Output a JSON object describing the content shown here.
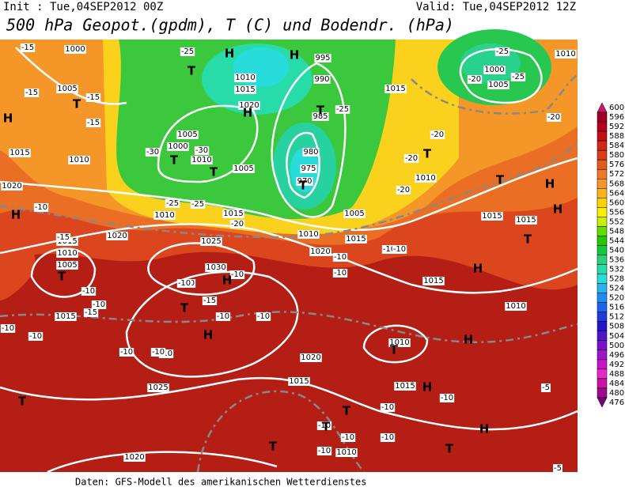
{
  "header": {
    "init": "Init : Tue,04SEP2012 00Z",
    "valid": "Valid: Tue,04SEP2012 12Z",
    "title": "500 hPa Geopot.(gpdm), T (C) und Bodendr. (hPa)"
  },
  "footer": "Daten: GFS-Modell des amerikanischen Wetterdienstes",
  "colorbar": {
    "levels": [
      600,
      596,
      592,
      588,
      584,
      580,
      576,
      572,
      568,
      564,
      560,
      556,
      552,
      548,
      544,
      540,
      536,
      532,
      528,
      524,
      520,
      516,
      512,
      508,
      504,
      500,
      496,
      492,
      488,
      484,
      480,
      476
    ],
    "colors": [
      "#d2146e",
      "#a00028",
      "#b4001e",
      "#c30f0f",
      "#d22814",
      "#dc3c14",
      "#e65a1e",
      "#f07828",
      "#f59628",
      "#fab41e",
      "#ffd200",
      "#fff000",
      "#c8f000",
      "#64dc00",
      "#28c800",
      "#14c83c",
      "#28d278",
      "#28dcaa",
      "#28dcdc",
      "#28b4f0",
      "#1e8cf0",
      "#1e64f0",
      "#1e3cdc",
      "#2814c8",
      "#5014c8",
      "#7814c8",
      "#a014c8",
      "#c814c8",
      "#e628c8",
      "#c814a0",
      "#a00a8c",
      "#780078"
    ]
  },
  "map": {
    "isobar_labels": [
      "1000",
      "1005",
      "1010",
      "1015",
      "1020",
      "1010",
      "1015",
      "1020",
      "1025",
      "1015",
      "1010",
      "1005",
      "1015",
      "1030",
      "1020",
      "1025",
      "1015",
      "1020",
      "1010",
      "1015",
      "1010",
      "1015",
      "1010",
      "1015",
      "1015",
      "1010",
      "1005",
      "1015",
      "1020",
      "1010",
      "995",
      "990",
      "985",
      "980",
      "975",
      "970",
      "1010",
      "1015",
      "1020",
      "1005",
      "1000",
      "1010",
      "1005",
      "1010",
      "1015",
      "1000",
      "1005"
    ],
    "temperature_labels": [
      "-15",
      "-15",
      "-15",
      "-15",
      "-30",
      "-25",
      "-25",
      "-25",
      "-20",
      "-20",
      "-20",
      "-25",
      "-25",
      "-20",
      "-20",
      "-15",
      "-10",
      "-10",
      "-10",
      "-10",
      "-15",
      "-10",
      "-10",
      "-10",
      "-10",
      "-10",
      "-10",
      "-15",
      "-10",
      "-10",
      "-10",
      "-10",
      "-10",
      "-10",
      "-10",
      "-10",
      "-10",
      "-10",
      "-10",
      "-10",
      "-5",
      "-5",
      "-20",
      "-25",
      "-30",
      "-10"
    ],
    "pressure_centers": [
      "H",
      "T",
      "T",
      "H",
      "H",
      "T",
      "T",
      "T",
      "T",
      "T",
      "T",
      "H",
      "H",
      "H",
      "T",
      "H",
      "T",
      "H",
      "H",
      "T",
      "T",
      "H",
      "H",
      "T",
      "T",
      "H",
      "T",
      "T",
      "T",
      "H"
    ]
  }
}
